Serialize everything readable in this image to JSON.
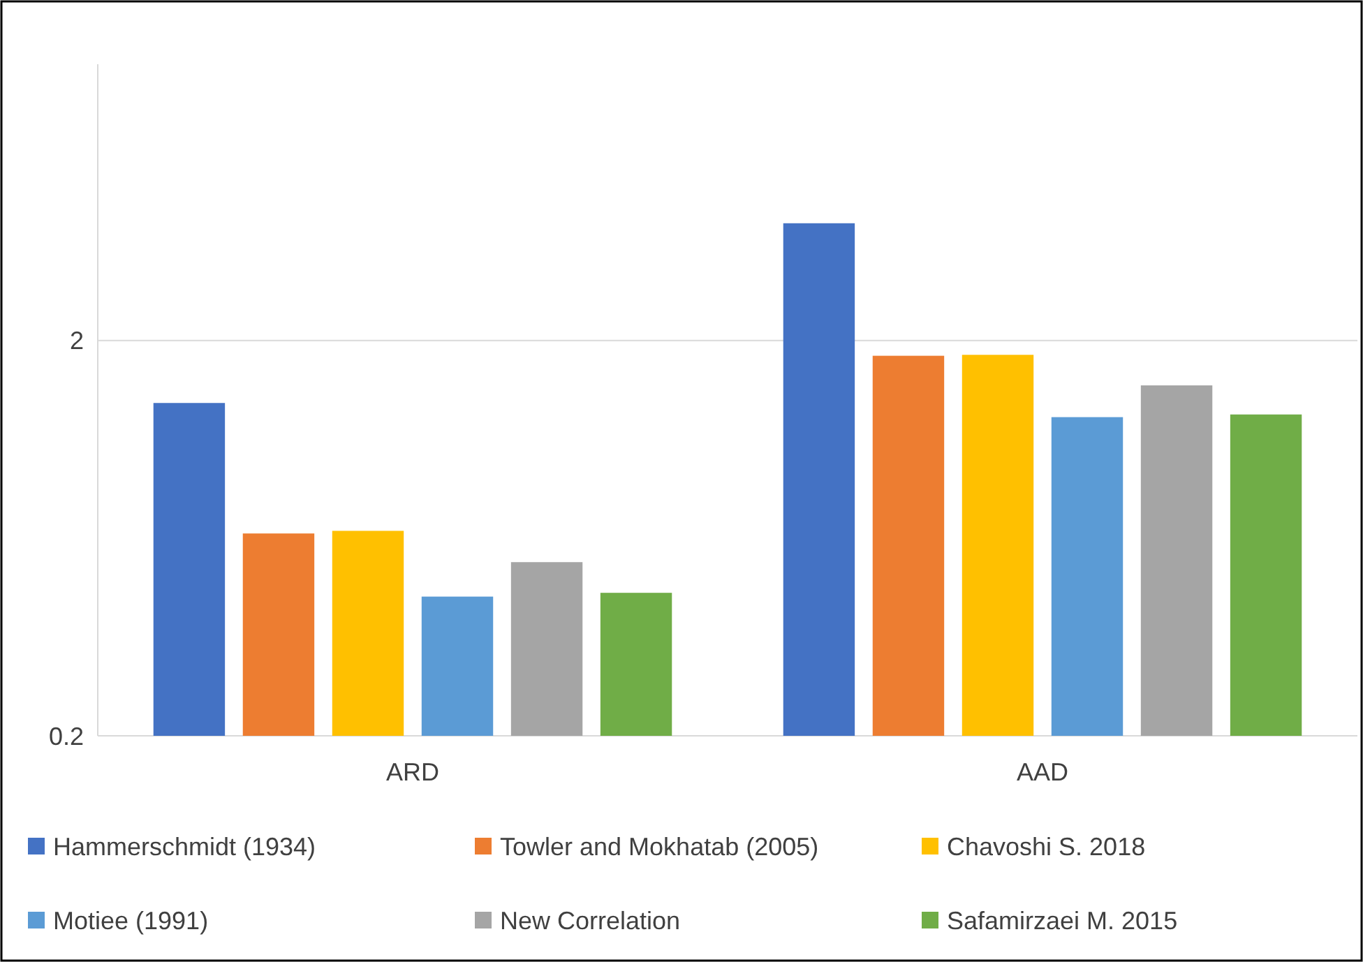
{
  "chart_data": {
    "type": "bar",
    "categories": [
      "ARD",
      "AAD"
    ],
    "series": [
      {
        "name": "Hammerschmidt (1934)",
        "color": "#4472c4",
        "values": [
          1.39,
          3.96
        ]
      },
      {
        "name": "Towler and Mokhatab (2005)",
        "color": "#ed7d31",
        "values": [
          0.65,
          1.83
        ]
      },
      {
        "name": "Chavoshi S. 2018",
        "color": "#ffc000",
        "values": [
          0.66,
          1.84
        ]
      },
      {
        "name": "Motiee (1991)",
        "color": "#5b9bd5",
        "values": [
          0.45,
          1.28
        ]
      },
      {
        "name": "New Correlation",
        "color": "#a5a5a5",
        "values": [
          0.55,
          1.54
        ]
      },
      {
        "name": "Safamirzaei M. 2015",
        "color": "#70ad47",
        "values": [
          0.46,
          1.3
        ]
      }
    ],
    "log": "y",
    "ylim": [
      0.2,
      10
    ],
    "yticks": [
      0.2,
      2
    ],
    "grid": "y",
    "legend": "bottom"
  }
}
